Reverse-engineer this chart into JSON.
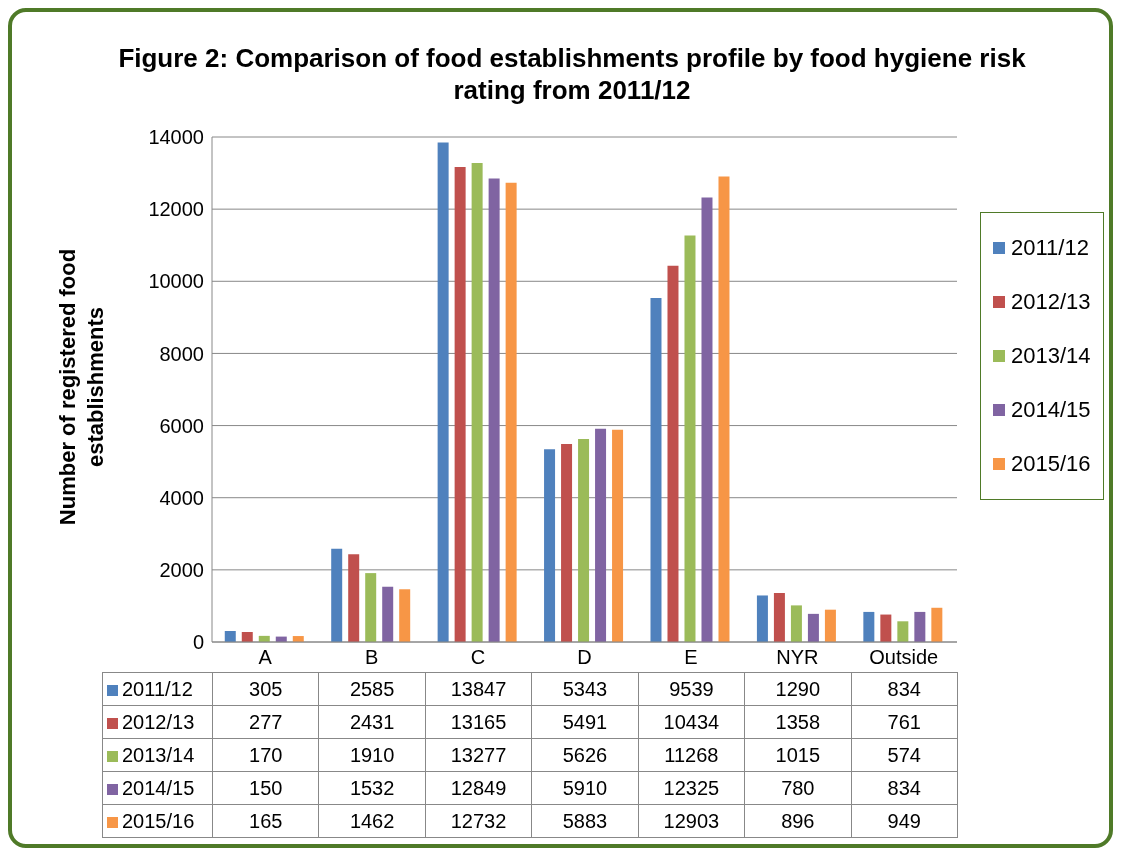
{
  "chart_data": {
    "type": "bar",
    "title": "Figure 2: Comparison of food establishments profile by food hygiene risk rating from 2011/12",
    "ylabel": "Number of registered food establishments",
    "categories": [
      "A",
      "B",
      "C",
      "D",
      "E",
      "NYR",
      "Outside"
    ],
    "ylim": [
      0,
      14000
    ],
    "yticks": [
      0,
      2000,
      4000,
      6000,
      8000,
      10000,
      12000,
      14000
    ],
    "grid": "y",
    "legend": "right",
    "data_labels": true,
    "series": [
      {
        "name": "2011/12",
        "color": "#4f81bd",
        "values": [
          305,
          2585,
          13847,
          5343,
          9539,
          1290,
          834
        ]
      },
      {
        "name": "2012/13",
        "color": "#c0504d",
        "values": [
          277,
          2431,
          13165,
          5491,
          10434,
          1358,
          761
        ]
      },
      {
        "name": "2013/14",
        "color": "#9bbb59",
        "values": [
          170,
          1910,
          13277,
          5626,
          11268,
          1015,
          574
        ]
      },
      {
        "name": "2014/15",
        "color": "#8064a2",
        "values": [
          150,
          1532,
          12849,
          5910,
          12325,
          780,
          834
        ]
      },
      {
        "name": "2015/16",
        "color": "#f79646",
        "values": [
          165,
          1462,
          12732,
          5883,
          12903,
          896,
          949
        ]
      }
    ]
  }
}
